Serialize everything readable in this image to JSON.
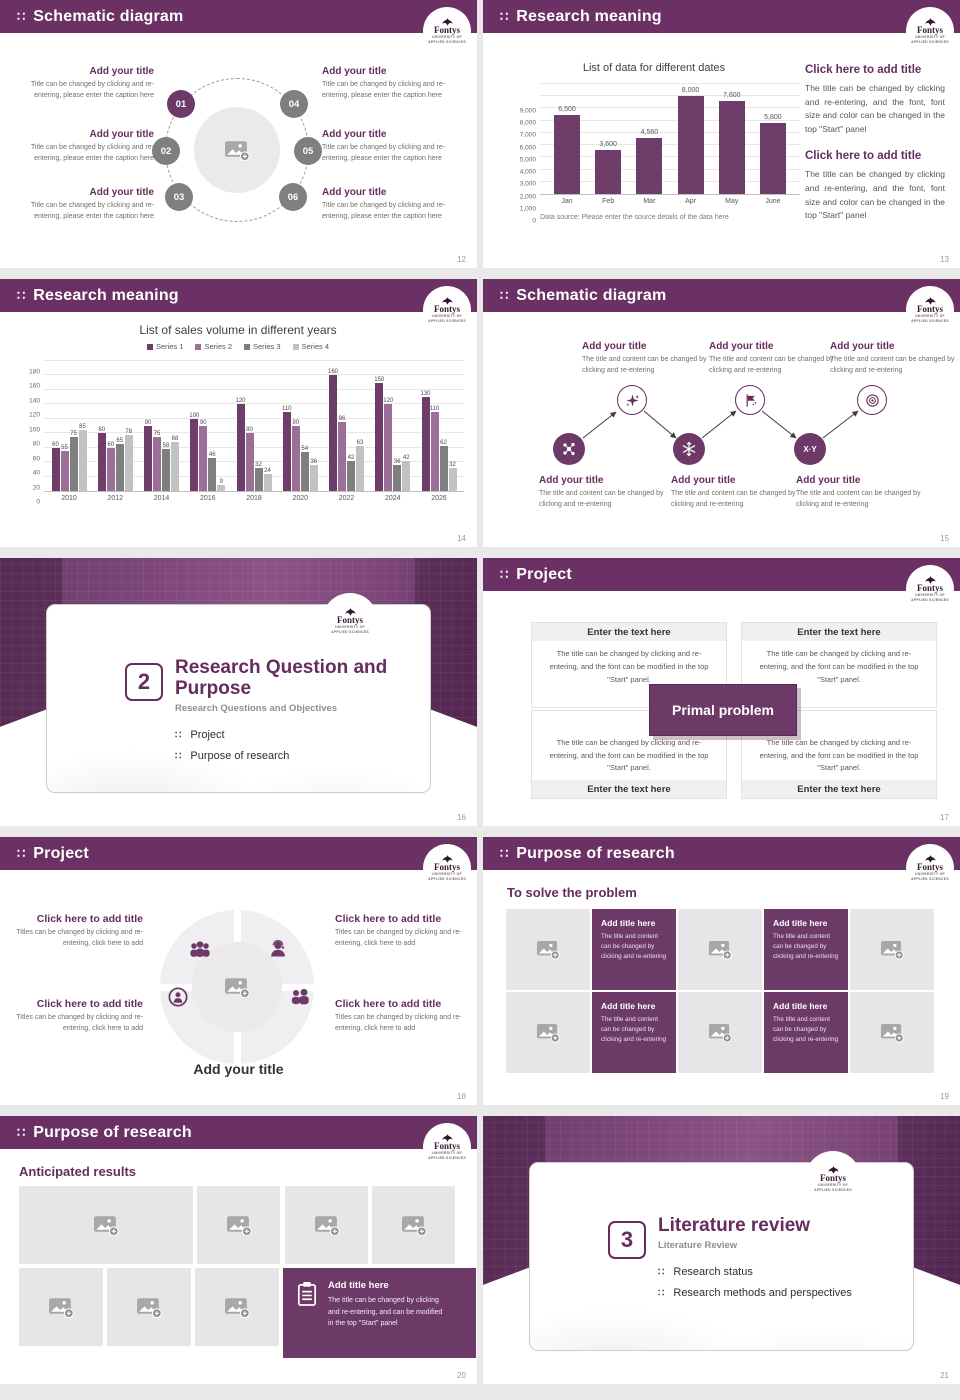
{
  "brand": {
    "name": "Fontys",
    "sub1": "UNIVERSITY OF",
    "sub2": "APPLIED SCIENCES"
  },
  "slides": [
    {
      "id": "s12",
      "type": "circle",
      "title": "Schematic diagram",
      "page": "12",
      "items": [
        {
          "num": "01",
          "title": "Add your title",
          "caption": "Title can be changed by clicking and re-entering, please enter the caption here"
        },
        {
          "num": "02",
          "title": "Add your title",
          "caption": "Title can be changed by clicking and re-entering, please enter the caption here"
        },
        {
          "num": "03",
          "title": "Add your title",
          "caption": "Title can be changed by clicking and re-entering, please enter the caption here"
        },
        {
          "num": "04",
          "title": "Add your title",
          "caption": "Title can be changed by clicking and re-entering, please enter the caption here"
        },
        {
          "num": "05",
          "title": "Add your title",
          "caption": "Title can be changed by clicking and re-entering, please enter the caption here"
        },
        {
          "num": "06",
          "title": "Add your title",
          "caption": "Title can be changed by clicking and re-entering, please enter the caption here"
        }
      ]
    },
    {
      "id": "s13",
      "type": "chart1",
      "title": "Research meaning",
      "page": "13",
      "blocks": [
        {
          "title": "Click here to add title",
          "body": "The title can be changed by clicking and re-entering, and the font, font size and color can be changed in the top \"Start\" panel"
        },
        {
          "title": "Click here to add title",
          "body": "The title can be changed by clicking and re-entering, and the font, font size and color can be changed in the top \"Start\" panel"
        }
      ]
    },
    {
      "id": "s14",
      "type": "chart2",
      "title": "Research meaning",
      "page": "14"
    },
    {
      "id": "s15",
      "type": "process",
      "title": "Schematic diagram",
      "page": "15",
      "xy_label": "X·Y",
      "top_blocks": [
        {
          "title": "Add your title",
          "caption": "The title and content can be changed by clicking and re-entering"
        },
        {
          "title": "Add your title",
          "caption": "The title and content can be changed by clicking and re-entering"
        },
        {
          "title": "Add your title",
          "caption": "The title and content can be changed by clicking and re-entering"
        }
      ],
      "bottom_blocks": [
        {
          "title": "Add your title",
          "caption": "The title and content can be changed by clicking and re-entering"
        },
        {
          "title": "Add your title",
          "caption": "The title and content can be changed by clicking and re-entering"
        },
        {
          "title": "Add your title",
          "caption": "The title and content can be changed by clicking and re-entering"
        }
      ]
    },
    {
      "id": "s16",
      "type": "divider",
      "page": "16",
      "number": "2",
      "title": "Research Question and Purpose",
      "subtitle": "Research Questions and Objectives",
      "items": [
        "Project",
        "Purpose of research"
      ]
    },
    {
      "id": "s17",
      "type": "matrix",
      "title": "Project",
      "page": "17",
      "center_label": "Primal problem",
      "card_header": "Enter the text here",
      "card_body": "The title can be changed by clicking and re-entering, and the font can be modified in the top \"Start\" panel."
    },
    {
      "id": "s18",
      "type": "ring",
      "title": "Project",
      "page": "18",
      "caption": "Add your title",
      "blocks": [
        {
          "title": "Click here to add title",
          "caption": "Titles can be changed by clicking and re-entering, click here to add"
        },
        {
          "title": "Click here to add title",
          "caption": "Titles can be changed by clicking and re-entering, click here to add"
        },
        {
          "title": "Click here to add title",
          "caption": "Titles can be changed by clicking and re-entering, click here to add"
        },
        {
          "title": "Click here to add title",
          "caption": "Titles can be changed by clicking and re-entering, click here to add"
        }
      ]
    },
    {
      "id": "s19",
      "type": "checker",
      "title": "Purpose of research",
      "page": "19",
      "heading": "To solve the problem",
      "tile_title": "Add title here",
      "tile_body": "The title and content can be changed by clicking and re-entering"
    },
    {
      "id": "s20",
      "type": "gallery",
      "title": "Purpose of research",
      "page": "20",
      "heading": "Anticipated results",
      "card": {
        "title": "Add title here",
        "body": "The title can be changed by clicking and re-entering, and can be modified in the top \"Start\" panel"
      }
    },
    {
      "id": "s21",
      "type": "divider",
      "page": "21",
      "number": "3",
      "title": "Literature review",
      "subtitle": "Literature Review",
      "items": [
        "Research status",
        "Research methods and perspectives"
      ]
    }
  ],
  "chart_data": [
    {
      "type": "bar",
      "title": "List of data for different dates",
      "categories": [
        "Jan",
        "Feb",
        "Mar",
        "Apr",
        "May",
        "June"
      ],
      "values": [
        6500,
        3600,
        4560,
        8000,
        7600,
        5800
      ],
      "value_labels": [
        "6,500",
        "3,600",
        "4,560",
        "8,000",
        "7,600",
        "5,800"
      ],
      "ylim": [
        0,
        9000
      ],
      "yticks": [
        "9,000",
        "8,000",
        "7,000",
        "6,000",
        "5,000",
        "4,000",
        "3,000",
        "2,000",
        "1,000",
        "0"
      ],
      "grid": true,
      "legend": false,
      "bar_color": "#6e3d69",
      "source": "Data source: Please enter the source details of the data here"
    },
    {
      "type": "bar",
      "grouped": true,
      "title": "List of sales volume in different years",
      "categories": [
        "2010",
        "2012",
        "2014",
        "2016",
        "2018",
        "2020",
        "2022",
        "2024",
        "2026"
      ],
      "series": [
        {
          "name": "Series 1",
          "color": "#6e3d69",
          "values": [
            60,
            80,
            90,
            100,
            120,
            110,
            160,
            150,
            130
          ]
        },
        {
          "name": "Series 2",
          "color": "#9c6f99",
          "values": [
            55,
            60,
            75,
            90,
            80,
            90,
            96,
            120,
            110
          ]
        },
        {
          "name": "Series 3",
          "color": "#7f7f7f",
          "values": [
            75,
            65,
            58,
            46,
            32,
            54,
            42,
            36,
            62
          ]
        },
        {
          "name": "Series 4",
          "color": "#c3c2c3",
          "values": [
            85,
            78,
            68,
            9,
            24,
            36,
            63,
            42,
            32
          ]
        }
      ],
      "ylim": [
        0,
        180
      ],
      "yticks": [
        "180",
        "160",
        "140",
        "120",
        "100",
        "80",
        "60",
        "40",
        "20",
        "0"
      ],
      "grid": true,
      "legend_position": "top"
    }
  ]
}
